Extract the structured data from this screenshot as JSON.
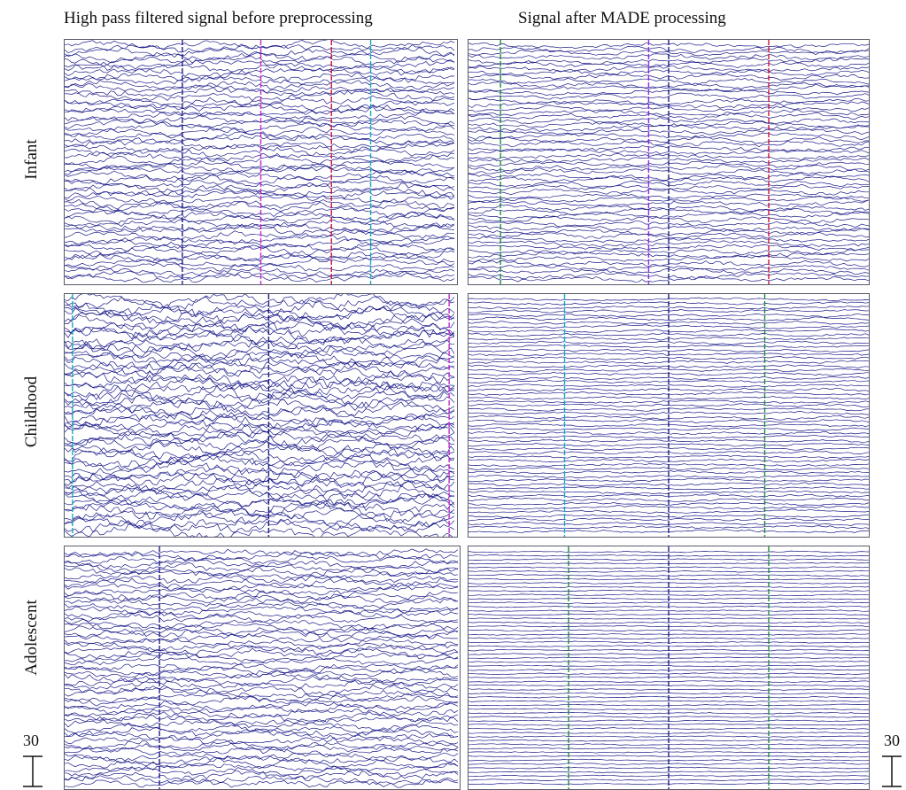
{
  "column_titles": {
    "left": "High pass filtered signal before preprocessing",
    "right": "Signal after MADE processing"
  },
  "row_labels": [
    "Infant",
    "Childhood",
    "Adolescent"
  ],
  "scale": {
    "value": "30"
  },
  "colors": {
    "trace": "#1c1c8a",
    "markers": {
      "green": "#1f8a3a",
      "magenta": "#c026d3",
      "red": "#d0103a",
      "cyan": "#1aa7c4",
      "navy": "#1c1c8a",
      "purple": "#8a2be2"
    }
  },
  "chart_data": [
    {
      "type": "line",
      "row": "Infant",
      "column": "before",
      "description_channels": 60,
      "noise_level": "high",
      "event_markers": [
        {
          "t": 0.3,
          "color": "navy"
        },
        {
          "t": 0.5,
          "color": "magenta"
        },
        {
          "t": 0.68,
          "color": "red"
        },
        {
          "t": 0.78,
          "color": "cyan"
        }
      ]
    },
    {
      "type": "line",
      "row": "Infant",
      "column": "after",
      "description_channels": 60,
      "noise_level": "medium",
      "event_markers": [
        {
          "t": 0.08,
          "color": "green"
        },
        {
          "t": 0.45,
          "color": "purple"
        },
        {
          "t": 0.5,
          "color": "navy"
        },
        {
          "t": 0.75,
          "color": "red"
        }
      ]
    },
    {
      "type": "line",
      "row": "Childhood",
      "column": "before",
      "description_channels": 60,
      "noise_level": "very_high",
      "event_markers": [
        {
          "t": 0.02,
          "color": "cyan"
        },
        {
          "t": 0.52,
          "color": "navy"
        },
        {
          "t": 0.98,
          "color": "magenta"
        }
      ]
    },
    {
      "type": "line",
      "row": "Childhood",
      "column": "after",
      "description_channels": 60,
      "noise_level": "low",
      "event_markers": [
        {
          "t": 0.24,
          "color": "cyan"
        },
        {
          "t": 0.5,
          "color": "navy"
        },
        {
          "t": 0.74,
          "color": "green"
        }
      ]
    },
    {
      "type": "line",
      "row": "Adolescent",
      "column": "before",
      "description_channels": 60,
      "noise_level": "high",
      "event_markers": [
        {
          "t": 0.24,
          "color": "navy"
        }
      ]
    },
    {
      "type": "line",
      "row": "Adolescent",
      "column": "after",
      "description_channels": 60,
      "noise_level": "very_low",
      "event_markers": [
        {
          "t": 0.25,
          "color": "green"
        },
        {
          "t": 0.5,
          "color": "navy"
        },
        {
          "t": 0.75,
          "color": "green"
        }
      ]
    }
  ]
}
